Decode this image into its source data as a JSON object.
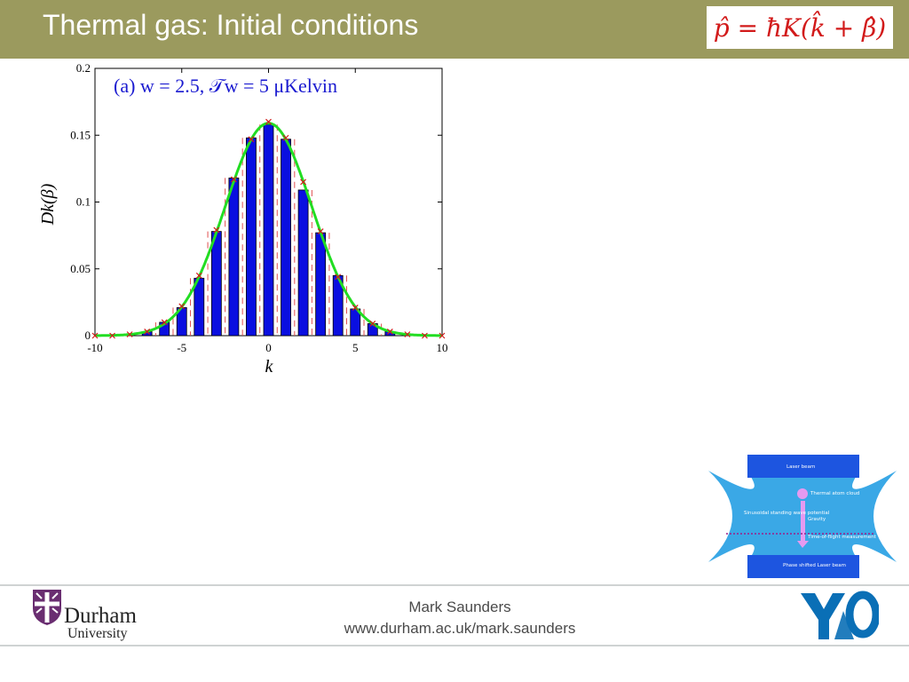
{
  "header": {
    "title": "Thermal gas: Initial conditions",
    "formula": "p̂ = ħK(k̂ + β̂)",
    "background": "#9b9a5e"
  },
  "chart_data": {
    "type": "bar",
    "title": "",
    "annotation": "(a) w = 2.5, 𝒯w = 5 μKelvin",
    "xlabel": "k",
    "ylabel": "Dk(β)",
    "xlim": [
      -10,
      10
    ],
    "ylim": [
      0,
      0.2
    ],
    "xticks": [
      -10,
      -5,
      0,
      5,
      10
    ],
    "yticks": [
      0,
      0.05,
      0.1,
      0.15,
      0.2
    ],
    "ytick_labels": [
      "0",
      "0.05",
      "0.1",
      "0.15",
      "0.2"
    ],
    "grid": false,
    "categories": [
      -10,
      -9,
      -8,
      -7,
      -6,
      -5,
      -4,
      -3,
      -2,
      -1,
      0,
      1,
      2,
      3,
      4,
      5,
      6,
      7,
      8,
      9,
      10
    ],
    "series": [
      {
        "values": [
          0,
          0,
          0.0005,
          0.003,
          0.01,
          0.021,
          0.043,
          0.078,
          0.118,
          0.148,
          0.158,
          0.147,
          0.109,
          0.077,
          0.045,
          0.02,
          0.009,
          0.003,
          0.0005,
          0,
          0
        ],
        "color": "#0a0fe0"
      },
      {
        "x": [
          -10,
          -9,
          -8,
          -7,
          -6,
          -5,
          -4,
          -3,
          -2,
          -1,
          0,
          1,
          2,
          3,
          4,
          5,
          6,
          7,
          8,
          9,
          10
        ],
        "values": [
          0,
          0,
          0.001,
          0.003,
          0.01,
          0.022,
          0.045,
          0.079,
          0.117,
          0.147,
          0.16,
          0.148,
          0.115,
          0.078,
          0.044,
          0.021,
          0.009,
          0.003,
          0.001,
          0,
          0
        ],
        "color": "#d21a1a",
        "marker": "x"
      }
    ],
    "curve": {
      "type": "gaussian",
      "peak": 0.159,
      "sigma": 2.5,
      "color": "#22dd22"
    },
    "dashed_lines_color": "#e05050"
  },
  "diagram": {
    "labels": [
      "Laser beam",
      "Thermal atom cloud",
      "Sinusoidal standing wave potential",
      "Gravity",
      "Time-of-flight measurement",
      "Phase shifted Laser beam"
    ],
    "colors": {
      "beam": "#1d55e0",
      "field": "#3aa8e6",
      "cloud": "#e69af0",
      "marker": "#9b1f8a"
    }
  },
  "footer": {
    "author": "Mark Saunders",
    "url": "www.durham.ac.uk/mark.saunders",
    "durham_name": "Durham",
    "durham_sub": "University",
    "yao_logo_text": "YAO",
    "durham_color": "#6a2e71",
    "yao_color": "#0a6fb6"
  }
}
